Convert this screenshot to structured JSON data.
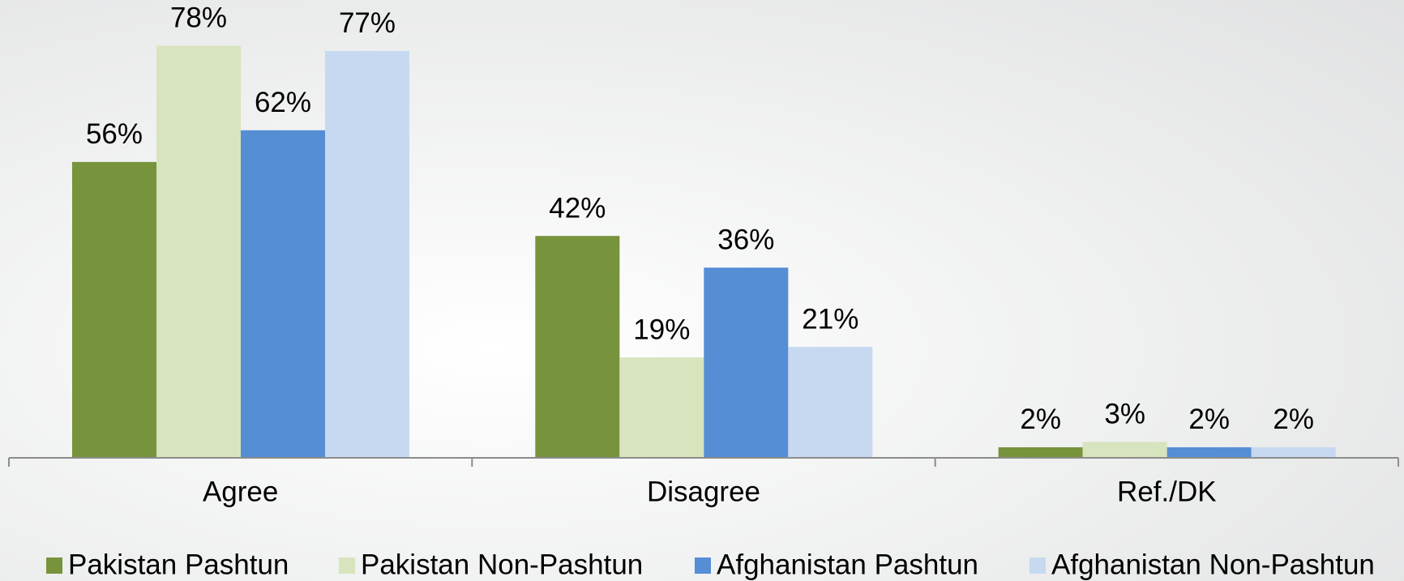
{
  "chart_data": {
    "type": "bar",
    "categories": [
      "Agree",
      "Disagree",
      "Ref./DK"
    ],
    "series": [
      {
        "name": "Pakistan Pashtun",
        "color": "#77933c",
        "values": [
          56,
          42,
          2
        ],
        "value_labels": [
          "56%",
          "42%",
          "2%"
        ]
      },
      {
        "name": "Pakistan Non-Pashtun",
        "color": "#d7e4bd",
        "values": [
          78,
          19,
          3
        ],
        "value_labels": [
          "78%",
          "19%",
          "3%"
        ]
      },
      {
        "name": "Afghanistan Pashtun",
        "color": "#558ed5",
        "values": [
          62,
          36,
          2
        ],
        "value_labels": [
          "62%",
          "36%",
          "2%"
        ]
      },
      {
        "name": "Afghanistan Non-Pashtun",
        "color": "#c6d9f1",
        "values": [
          77,
          21,
          2
        ],
        "value_labels": [
          "77%",
          "21%",
          "2%"
        ]
      }
    ],
    "legend": "bottom"
  }
}
